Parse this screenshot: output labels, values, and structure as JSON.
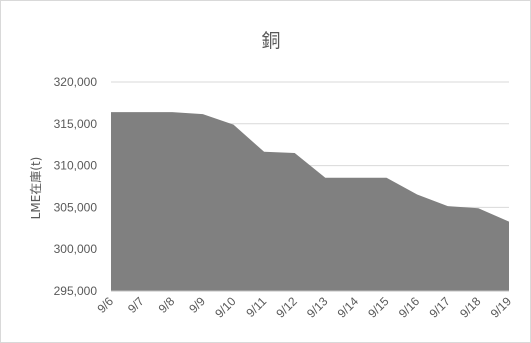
{
  "chart_data": {
    "type": "area",
    "title": "銅",
    "xlabel": "",
    "ylabel": "LME在庫(t)",
    "categories": [
      "9/6",
      "9/7",
      "9/8",
      "9/9",
      "9/10",
      "9/11",
      "9/12",
      "9/13",
      "9/14",
      "9/15",
      "9/16",
      "9/17",
      "9/18",
      "9/19"
    ],
    "values": [
      316400,
      316400,
      316400,
      316150,
      314900,
      311650,
      311500,
      308550,
      308550,
      308550,
      306550,
      305150,
      304900,
      303300
    ],
    "ylim": [
      295000,
      320000
    ],
    "yticks": [
      295000,
      300000,
      305000,
      310000,
      315000,
      320000
    ],
    "ytick_labels": [
      "295,000",
      "300,000",
      "305,000",
      "310,000",
      "315,000",
      "320,000"
    ],
    "grid": true,
    "legend": "none",
    "colors": {
      "fill": "#808080",
      "grid": "#d9d9d9",
      "text": "#595959"
    }
  }
}
